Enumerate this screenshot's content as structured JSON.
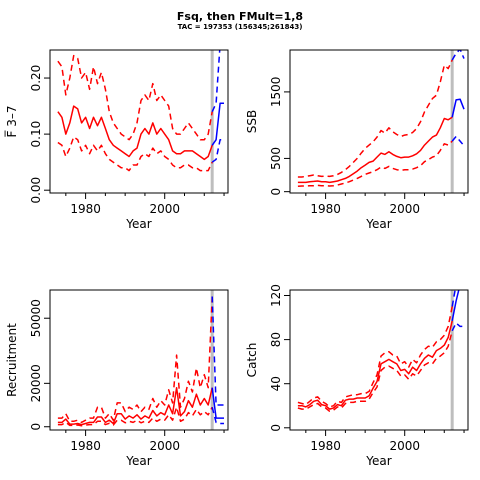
{
  "title": "Fsq, then FMult=1,8",
  "subtitle": "TAC = 197353 (156345;261843)",
  "colors": {
    "history": "#ff0000",
    "projection": "#0000ff",
    "marker": "#bebebe"
  },
  "marker_year": 2012,
  "chart_data": [
    {
      "type": "line",
      "ylabel": "F̅ 3–7",
      "xlabel": "Year",
      "xlim": [
        1971,
        2016
      ],
      "ylim": [
        -0.005,
        0.25
      ],
      "xticks": [
        1980,
        2000
      ],
      "yticks": [
        0.0,
        0.1,
        0.2
      ],
      "ytick_labels": [
        "0.00",
        "0.10",
        "0.20"
      ],
      "history": {
        "x": [
          1973,
          1974,
          1975,
          1976,
          1977,
          1978,
          1979,
          1980,
          1981,
          1982,
          1983,
          1984,
          1985,
          1986,
          1987,
          1988,
          1989,
          1990,
          1991,
          1992,
          1993,
          1994,
          1995,
          1996,
          1997,
          1998,
          1999,
          2000,
          2001,
          2002,
          2003,
          2004,
          2005,
          2006,
          2007,
          2008,
          2009,
          2010,
          2011,
          2012
        ],
        "median": [
          0.14,
          0.13,
          0.1,
          0.12,
          0.15,
          0.145,
          0.12,
          0.13,
          0.11,
          0.13,
          0.115,
          0.13,
          0.11,
          0.09,
          0.08,
          0.075,
          0.07,
          0.065,
          0.06,
          0.07,
          0.075,
          0.1,
          0.11,
          0.1,
          0.12,
          0.1,
          0.11,
          0.1,
          0.09,
          0.07,
          0.065,
          0.065,
          0.07,
          0.07,
          0.07,
          0.065,
          0.06,
          0.055,
          0.06,
          0.08
        ],
        "upper": [
          0.23,
          0.22,
          0.17,
          0.2,
          0.24,
          0.235,
          0.2,
          0.21,
          0.18,
          0.22,
          0.19,
          0.21,
          0.18,
          0.14,
          0.12,
          0.11,
          0.1,
          0.095,
          0.09,
          0.1,
          0.12,
          0.16,
          0.17,
          0.16,
          0.19,
          0.16,
          0.17,
          0.16,
          0.15,
          0.11,
          0.1,
          0.1,
          0.11,
          0.12,
          0.11,
          0.1,
          0.09,
          0.09,
          0.1,
          0.14
        ],
        "lower": [
          0.085,
          0.08,
          0.06,
          0.075,
          0.095,
          0.09,
          0.07,
          0.08,
          0.065,
          0.08,
          0.07,
          0.08,
          0.065,
          0.055,
          0.05,
          0.045,
          0.04,
          0.04,
          0.035,
          0.045,
          0.045,
          0.06,
          0.065,
          0.06,
          0.075,
          0.065,
          0.07,
          0.06,
          0.055,
          0.045,
          0.04,
          0.04,
          0.045,
          0.045,
          0.04,
          0.04,
          0.035,
          0.035,
          0.035,
          0.05
        ]
      },
      "projection": {
        "x": [
          2012,
          2013,
          2014,
          2015
        ],
        "median": [
          0.08,
          0.09,
          0.155,
          0.155
        ],
        "upper": [
          0.14,
          0.155,
          0.26,
          0.26
        ],
        "lower": [
          0.05,
          0.055,
          0.09,
          0.09
        ]
      }
    },
    {
      "type": "line",
      "ylabel": "SSB",
      "xlabel": "Year",
      "xlim": [
        1971,
        2016
      ],
      "ylim": [
        -20,
        2130
      ],
      "xticks": [
        1980,
        2000
      ],
      "yticks": [
        0,
        500,
        1500
      ],
      "ytick_labels": [
        "0",
        "500",
        "1500"
      ],
      "history": {
        "x": [
          1973,
          1974,
          1975,
          1976,
          1977,
          1978,
          1979,
          1980,
          1981,
          1982,
          1983,
          1984,
          1985,
          1986,
          1987,
          1988,
          1989,
          1990,
          1991,
          1992,
          1993,
          1994,
          1995,
          1996,
          1997,
          1998,
          1999,
          2000,
          2001,
          2002,
          2003,
          2004,
          2005,
          2006,
          2007,
          2008,
          2009,
          2010,
          2011,
          2012
        ],
        "median": [
          140,
          140,
          140,
          150,
          155,
          160,
          150,
          150,
          140,
          150,
          160,
          180,
          200,
          230,
          270,
          310,
          360,
          400,
          440,
          460,
          520,
          580,
          560,
          600,
          560,
          530,
          510,
          520,
          520,
          540,
          570,
          620,
          700,
          760,
          820,
          850,
          960,
          1100,
          1080,
          1120
        ],
        "upper": [
          220,
          220,
          230,
          240,
          250,
          240,
          230,
          235,
          230,
          240,
          260,
          290,
          330,
          380,
          440,
          500,
          580,
          650,
          700,
          750,
          820,
          920,
          880,
          960,
          900,
          860,
          830,
          850,
          860,
          890,
          950,
          1050,
          1200,
          1300,
          1400,
          1450,
          1650,
          1900,
          1850,
          1980
        ],
        "lower": [
          80,
          85,
          85,
          90,
          90,
          95,
          90,
          90,
          85,
          90,
          100,
          115,
          130,
          150,
          175,
          200,
          230,
          260,
          280,
          300,
          330,
          370,
          350,
          380,
          350,
          330,
          320,
          330,
          330,
          340,
          360,
          390,
          450,
          480,
          520,
          540,
          620,
          720,
          700,
          760
        ]
      },
      "projection": {
        "x": [
          2012,
          2013,
          2014,
          2015
        ],
        "median": [
          1120,
          1380,
          1390,
          1240
        ],
        "upper": [
          1980,
          2080,
          2140,
          2000
        ],
        "lower": [
          760,
          830,
          760,
          690
        ]
      }
    },
    {
      "type": "line",
      "ylabel": "Recruitment",
      "xlabel": "Year",
      "xlim": [
        1971,
        2016
      ],
      "ylim": [
        -1500,
        63000
      ],
      "xticks": [
        1980,
        2000
      ],
      "yticks": [
        0,
        20000,
        50000
      ],
      "ytick_labels": [
        "0",
        "20000",
        "50000"
      ],
      "history": {
        "x": [
          1973,
          1974,
          1975,
          1976,
          1977,
          1978,
          1979,
          1980,
          1981,
          1982,
          1983,
          1984,
          1985,
          1986,
          1987,
          1988,
          1989,
          1990,
          1991,
          1992,
          1993,
          1994,
          1995,
          1996,
          1997,
          1998,
          1999,
          2000,
          2001,
          2002,
          2003,
          2004,
          2005,
          2006,
          2007,
          2008,
          2009,
          2010,
          2011,
          2012
        ],
        "median": [
          2000,
          2000,
          3500,
          1200,
          1200,
          1500,
          1000,
          1500,
          2000,
          2000,
          4500,
          4500,
          2000,
          3000,
          1500,
          6000,
          6000,
          3500,
          5000,
          4000,
          5500,
          3500,
          5000,
          4000,
          7500,
          5000,
          6500,
          5500,
          10000,
          6000,
          18000,
          5000,
          7000,
          12000,
          9000,
          15000,
          10000,
          13000,
          10000,
          18000
        ],
        "upper": [
          4000,
          4000,
          6000,
          2500,
          2500,
          3000,
          2000,
          3000,
          4000,
          4000,
          9000,
          9000,
          4000,
          6000,
          3000,
          11000,
          11000,
          7000,
          9000,
          8000,
          10000,
          7000,
          9000,
          8000,
          13000,
          9000,
          12000,
          10000,
          17000,
          11000,
          33000,
          9000,
          13000,
          21000,
          16000,
          27000,
          18000,
          24000,
          18000,
          60000
        ],
        "lower": [
          1000,
          1000,
          2000,
          600,
          600,
          800,
          500,
          800,
          1000,
          1000,
          2500,
          2500,
          1000,
          1600,
          800,
          3000,
          3000,
          1800,
          2500,
          2000,
          3000,
          1800,
          2500,
          2000,
          4000,
          2500,
          3500,
          3000,
          5500,
          3000,
          9000,
          2500,
          3500,
          6500,
          5000,
          8000,
          5500,
          7000,
          5500,
          9000
        ]
      },
      "projection": {
        "x": [
          2012,
          2013,
          2014,
          2015
        ],
        "median": [
          18000,
          4000,
          4000,
          4000
        ],
        "upper": [
          60000,
          10000,
          10000,
          10000
        ],
        "lower": [
          9000,
          2000,
          1500,
          1500
        ]
      }
    },
    {
      "type": "line",
      "ylabel": "Catch",
      "xlabel": "Year",
      "xlim": [
        1971,
        2016
      ],
      "ylim": [
        -2,
        125
      ],
      "xticks": [
        1980,
        2000
      ],
      "yticks": [
        0,
        40,
        80,
        120
      ],
      "ytick_labels": [
        "0",
        "40",
        "80",
        "120"
      ],
      "history": {
        "x": [
          1973,
          1974,
          1975,
          1976,
          1977,
          1978,
          1979,
          1980,
          1981,
          1982,
          1983,
          1984,
          1985,
          1986,
          1987,
          1988,
          1989,
          1990,
          1991,
          1992,
          1993,
          1994,
          1995,
          1996,
          1997,
          1998,
          1999,
          2000,
          2001,
          2002,
          2003,
          2004,
          2005,
          2006,
          2007,
          2008,
          2009,
          2010,
          2011,
          2012
        ],
        "median": [
          20,
          20,
          19,
          21,
          24,
          25,
          21,
          20,
          17,
          18,
          21,
          20,
          25,
          26,
          26,
          27,
          27,
          27,
          29,
          36,
          42,
          58,
          60,
          62,
          60,
          58,
          52,
          53,
          49,
          55,
          52,
          58,
          63,
          66,
          64,
          70,
          72,
          75,
          82,
          97
        ],
        "upper": [
          23,
          22,
          21,
          24,
          27,
          28,
          24,
          22,
          19,
          20,
          24,
          23,
          28,
          29,
          30,
          30,
          31,
          31,
          33,
          41,
          48,
          65,
          68,
          69,
          66,
          65,
          58,
          60,
          55,
          62,
          59,
          66,
          71,
          74,
          73,
          78,
          80,
          84,
          92,
          110
        ],
        "lower": [
          18,
          17,
          17,
          19,
          21,
          22,
          19,
          18,
          15,
          16,
          19,
          18,
          22,
          23,
          23,
          24,
          24,
          24,
          26,
          32,
          37,
          52,
          55,
          56,
          54,
          52,
          47,
          48,
          44,
          49,
          47,
          52,
          57,
          59,
          58,
          63,
          65,
          68,
          74,
          88
        ]
      },
      "projection": {
        "x": [
          2012,
          2013,
          2014,
          2015
        ],
        "median": [
          97,
          115,
          130,
          130
        ],
        "upper": [
          110,
          130,
          145,
          145
        ],
        "lower": [
          88,
          95,
          92,
          92
        ]
      }
    }
  ]
}
